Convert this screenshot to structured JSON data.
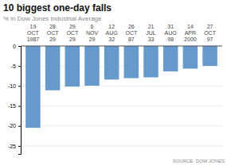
{
  "chart_data": {
    "type": "bar",
    "title": "10 biggest one-day falls",
    "subtitle": "% in Dow Jones Industrial Average",
    "source": "SOURCE: DOW JONES",
    "categories": [
      [
        "19",
        "OCT",
        "1987"
      ],
      [
        "28",
        "OCT",
        "29"
      ],
      [
        "29",
        "OCT",
        "29"
      ],
      [
        "6",
        "NOV",
        "29"
      ],
      [
        "12",
        "AUG",
        "32"
      ],
      [
        "26",
        "OCT",
        "87"
      ],
      [
        "21",
        "JUL",
        "33"
      ],
      [
        "31",
        "AUG",
        "98"
      ],
      [
        "14",
        "APR",
        "2000"
      ],
      [
        "27",
        "OCT",
        "97"
      ]
    ],
    "values": [
      -20.47,
      -11.08,
      -10.16,
      -9.92,
      -8.4,
      -8.04,
      -7.84,
      -6.37,
      -5.66,
      -4.98
    ],
    "color": "#6699cc",
    "ylim": [
      -27,
      0
    ],
    "yticks": [
      0,
      -5,
      -10,
      -15,
      -20,
      -25
    ],
    "grid": true
  }
}
